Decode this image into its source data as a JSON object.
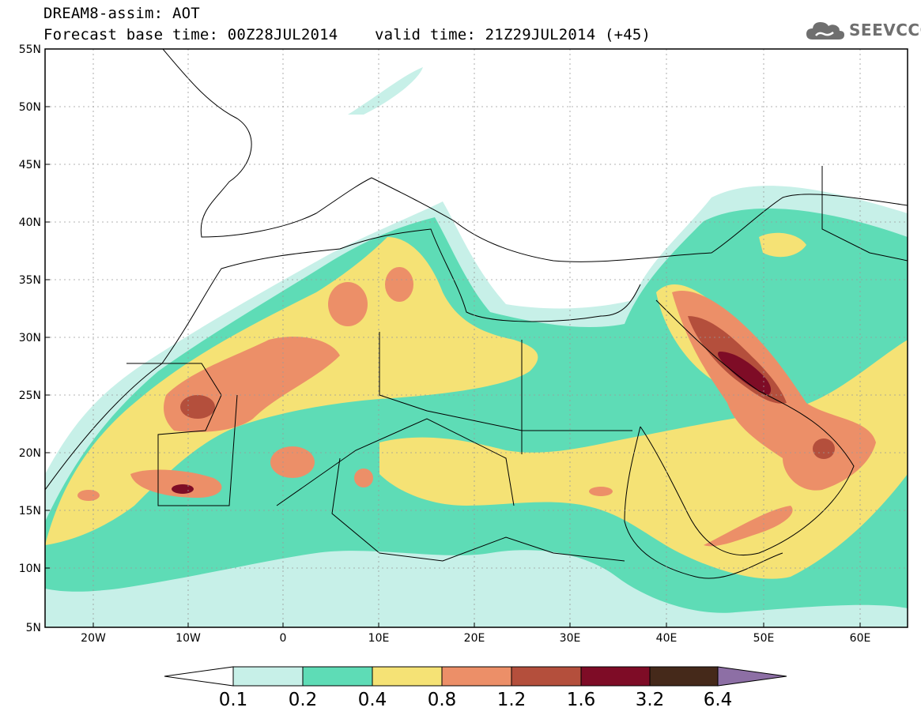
{
  "header": {
    "title_line1": "DREAM8-assim: AOT",
    "title_line2": "Forecast base time: 00Z28JUL2014    valid time: 21Z29JUL2014 (+45)",
    "logo_text": "SEEVCCC",
    "logo_icon": "cloud-icon"
  },
  "map": {
    "lat_labels": [
      "55N",
      "50N",
      "45N",
      "40N",
      "35N",
      "30N",
      "25N",
      "20N",
      "15N",
      "10N",
      "5N"
    ],
    "lon_labels": [
      "20W",
      "10W",
      "0",
      "10E",
      "20E",
      "30E",
      "40E",
      "50E",
      "60E"
    ],
    "lat_range": [
      5,
      55
    ],
    "lon_range": [
      -25,
      65
    ]
  },
  "colorbar": {
    "levels": [
      "0.1",
      "0.2",
      "0.4",
      "0.8",
      "1.2",
      "1.6",
      "3.2",
      "6.4"
    ],
    "colors": [
      "#ffffff",
      "#c7f0e8",
      "#5edcb6",
      "#f5e275",
      "#ec8f68",
      "#b44f3c",
      "#7e0c26",
      "#45291a",
      "#8d6fa5"
    ]
  }
}
